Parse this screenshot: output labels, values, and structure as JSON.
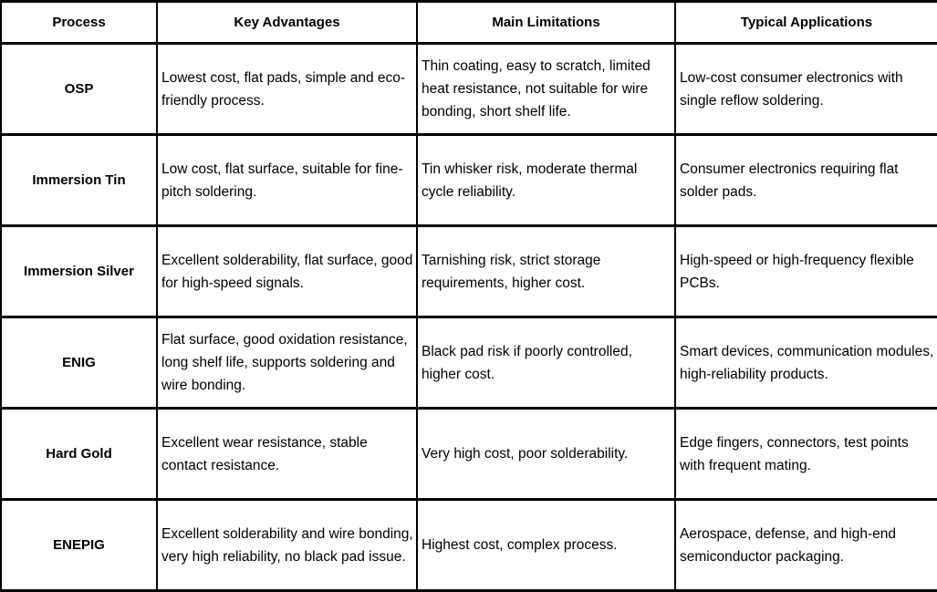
{
  "table": {
    "columns": [
      "Process",
      "Key Advantages",
      "Main Limitations",
      "Typical Applications"
    ],
    "rows": [
      {
        "process": "OSP",
        "advantages": "Lowest cost, flat pads, simple and eco-friendly process.",
        "limitations": "Thin coating, easy to scratch, limited heat resistance, not suitable for wire bonding, short shelf life.",
        "applications": "Low-cost consumer electronics with single reflow soldering."
      },
      {
        "process": "Immersion Tin",
        "advantages": "Low cost, flat surface, suitable for fine-pitch soldering.",
        "limitations": "Tin whisker risk, moderate thermal cycle reliability.",
        "applications": "Consumer electronics requiring flat solder pads."
      },
      {
        "process": "Immersion Silver",
        "advantages": "Excellent solderability, flat surface, good for high-speed signals.",
        "limitations": "Tarnishing risk, strict storage requirements, higher cost.",
        "applications": "High-speed or high-frequency flexible PCBs."
      },
      {
        "process": "ENIG",
        "advantages": "Flat surface, good oxidation resistance, long shelf life, supports soldering and wire bonding.",
        "limitations": "Black pad risk if poorly controlled, higher cost.",
        "applications": "Smart devices, communication modules, high-reliability products."
      },
      {
        "process": "Hard Gold",
        "advantages": "Excellent wear resistance, stable contact resistance.",
        "limitations": "Very high cost, poor solderability.",
        "applications": "Edge fingers, connectors, test points with frequent mating."
      },
      {
        "process": "ENEPIG",
        "advantages": "Excellent solderability and wire bonding, very high reliability, no black pad issue.",
        "limitations": "Highest cost, complex process.",
        "applications": "Aerospace, defense, and high-end semiconductor packaging."
      }
    ]
  }
}
